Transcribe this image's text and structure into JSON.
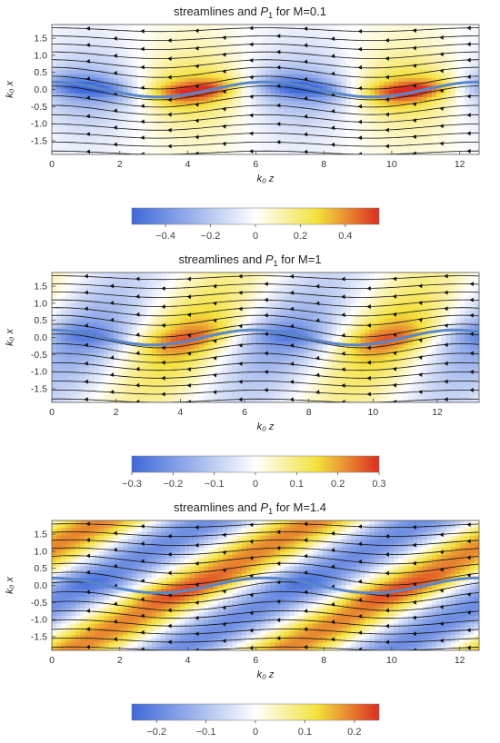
{
  "chart_data": [
    {
      "type": "heatmap",
      "title_prefix": "streamlines and ",
      "title_var": "P",
      "title_sub": "1",
      "title_suffix": " for M=0.1",
      "xlabel": "k₀ z",
      "ylabel": "k₀ x",
      "xlim": [
        0,
        12.57
      ],
      "ylim": [
        -1.9,
        1.9
      ],
      "xticks": [
        "0",
        "2",
        "4",
        "6",
        "8",
        "10",
        "12"
      ],
      "yticks": [
        "1.5",
        "1.0",
        "0.5",
        "0.0",
        "-0.5",
        "-1.0",
        "-1.5"
      ],
      "colorbar_ticks": [
        "-0.4",
        "-0.2",
        "0",
        "0.2",
        "0.4"
      ],
      "colorbar_range": [
        -0.55,
        0.55
      ],
      "tilt": 0.0,
      "decay": 0.9,
      "colormap": [
        "#3d68d8",
        "#ffffff",
        "#f4e13c",
        "#dc2d22"
      ]
    },
    {
      "type": "heatmap",
      "title_prefix": "streamlines and ",
      "title_var": "P",
      "title_sub": "1",
      "title_suffix": " for M=1",
      "xlabel": "k₀ z",
      "ylabel": "k₀ x",
      "xlim": [
        0,
        13.3
      ],
      "ylim": [
        -1.9,
        1.9
      ],
      "xticks": [
        "0",
        "2",
        "4",
        "6",
        "8",
        "10",
        "12"
      ],
      "yticks": [
        "1.5",
        "1.0",
        "0.5",
        "0.0",
        "-0.5",
        "-1.0",
        "-1.5"
      ],
      "colorbar_ticks": [
        "-0.3",
        "-0.2",
        "-0.1",
        "0",
        "0.1",
        "0.2",
        "0.3"
      ],
      "colorbar_range": [
        -0.3,
        0.3
      ],
      "tilt": 0.35,
      "decay": 0.45,
      "colormap": [
        "#3d68d8",
        "#ffffff",
        "#f4e13c",
        "#dc2d22"
      ]
    },
    {
      "type": "heatmap",
      "title_prefix": "streamlines and ",
      "title_var": "P",
      "title_sub": "1",
      "title_suffix": " for M=1.4",
      "xlabel": "k₀ z",
      "ylabel": "k₀ x",
      "xlim": [
        0,
        12.57
      ],
      "ylim": [
        -1.9,
        1.9
      ],
      "xticks": [
        "0",
        "2",
        "4",
        "6",
        "8",
        "10",
        "12"
      ],
      "yticks": [
        "1.5",
        "1.0",
        "0.5",
        "0.0",
        "-0.5",
        "-1.0",
        "-1.5"
      ],
      "colorbar_ticks": [
        "-0.2",
        "-0.1",
        "0",
        "0.1",
        "0.2"
      ],
      "colorbar_range": [
        -0.25,
        0.25
      ],
      "tilt": 0.95,
      "decay": 0.0,
      "colormap": [
        "#3d68d8",
        "#ffffff",
        "#f4e13c",
        "#dc2d22"
      ]
    }
  ]
}
